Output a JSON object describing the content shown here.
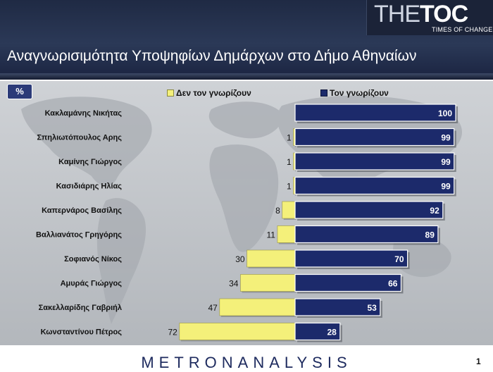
{
  "header": {
    "title": "Αναγνωρισιμότητα Υποψηφίων Δημάρχων στο Δήμο Αθηναίων",
    "logo": {
      "the": "THE",
      "toc": "TOC",
      "tagline": "TIMES OF CHANGE"
    }
  },
  "unit_badge": "%",
  "footer": {
    "brand": "METRONANALYSIS",
    "page_number": "1"
  },
  "colors": {
    "dont_know": "#f4f07a",
    "know": "#1c2a6b",
    "header_bg": "#243150"
  },
  "chart_data": {
    "type": "bar",
    "orientation": "horizontal",
    "stacking": "diverging",
    "categories": [
      "Κακλαμάνης Νικήτας",
      "Σπηλιωτόπουλος Αρης",
      "Καμίνης Γιώργος",
      "Κασιδιάρης Ηλίας",
      "Καπερνάρος Βασίλης",
      "Βαλλιανάτος Γρηγόρης",
      "Σοφιανός Νίκος",
      "Αμυράς Γιώργος",
      "Σακελλαρίδης Γαβριήλ",
      "Κωνσταντίνου Πέτρος"
    ],
    "series": [
      {
        "name": "Δεν τον γνωρίζουν",
        "values": [
          0,
          1,
          1,
          1,
          8,
          11,
          30,
          34,
          47,
          72
        ]
      },
      {
        "name": "Τον γνωρίζουν",
        "values": [
          100,
          99,
          99,
          99,
          92,
          89,
          70,
          66,
          53,
          28
        ]
      }
    ],
    "data_labels_shown": {
      "dont_know": [
        false,
        true,
        true,
        true,
        true,
        true,
        true,
        true,
        true,
        true
      ],
      "know": [
        true,
        true,
        true,
        true,
        true,
        true,
        true,
        true,
        true,
        true
      ]
    },
    "legend_position": "top",
    "grid": false
  }
}
